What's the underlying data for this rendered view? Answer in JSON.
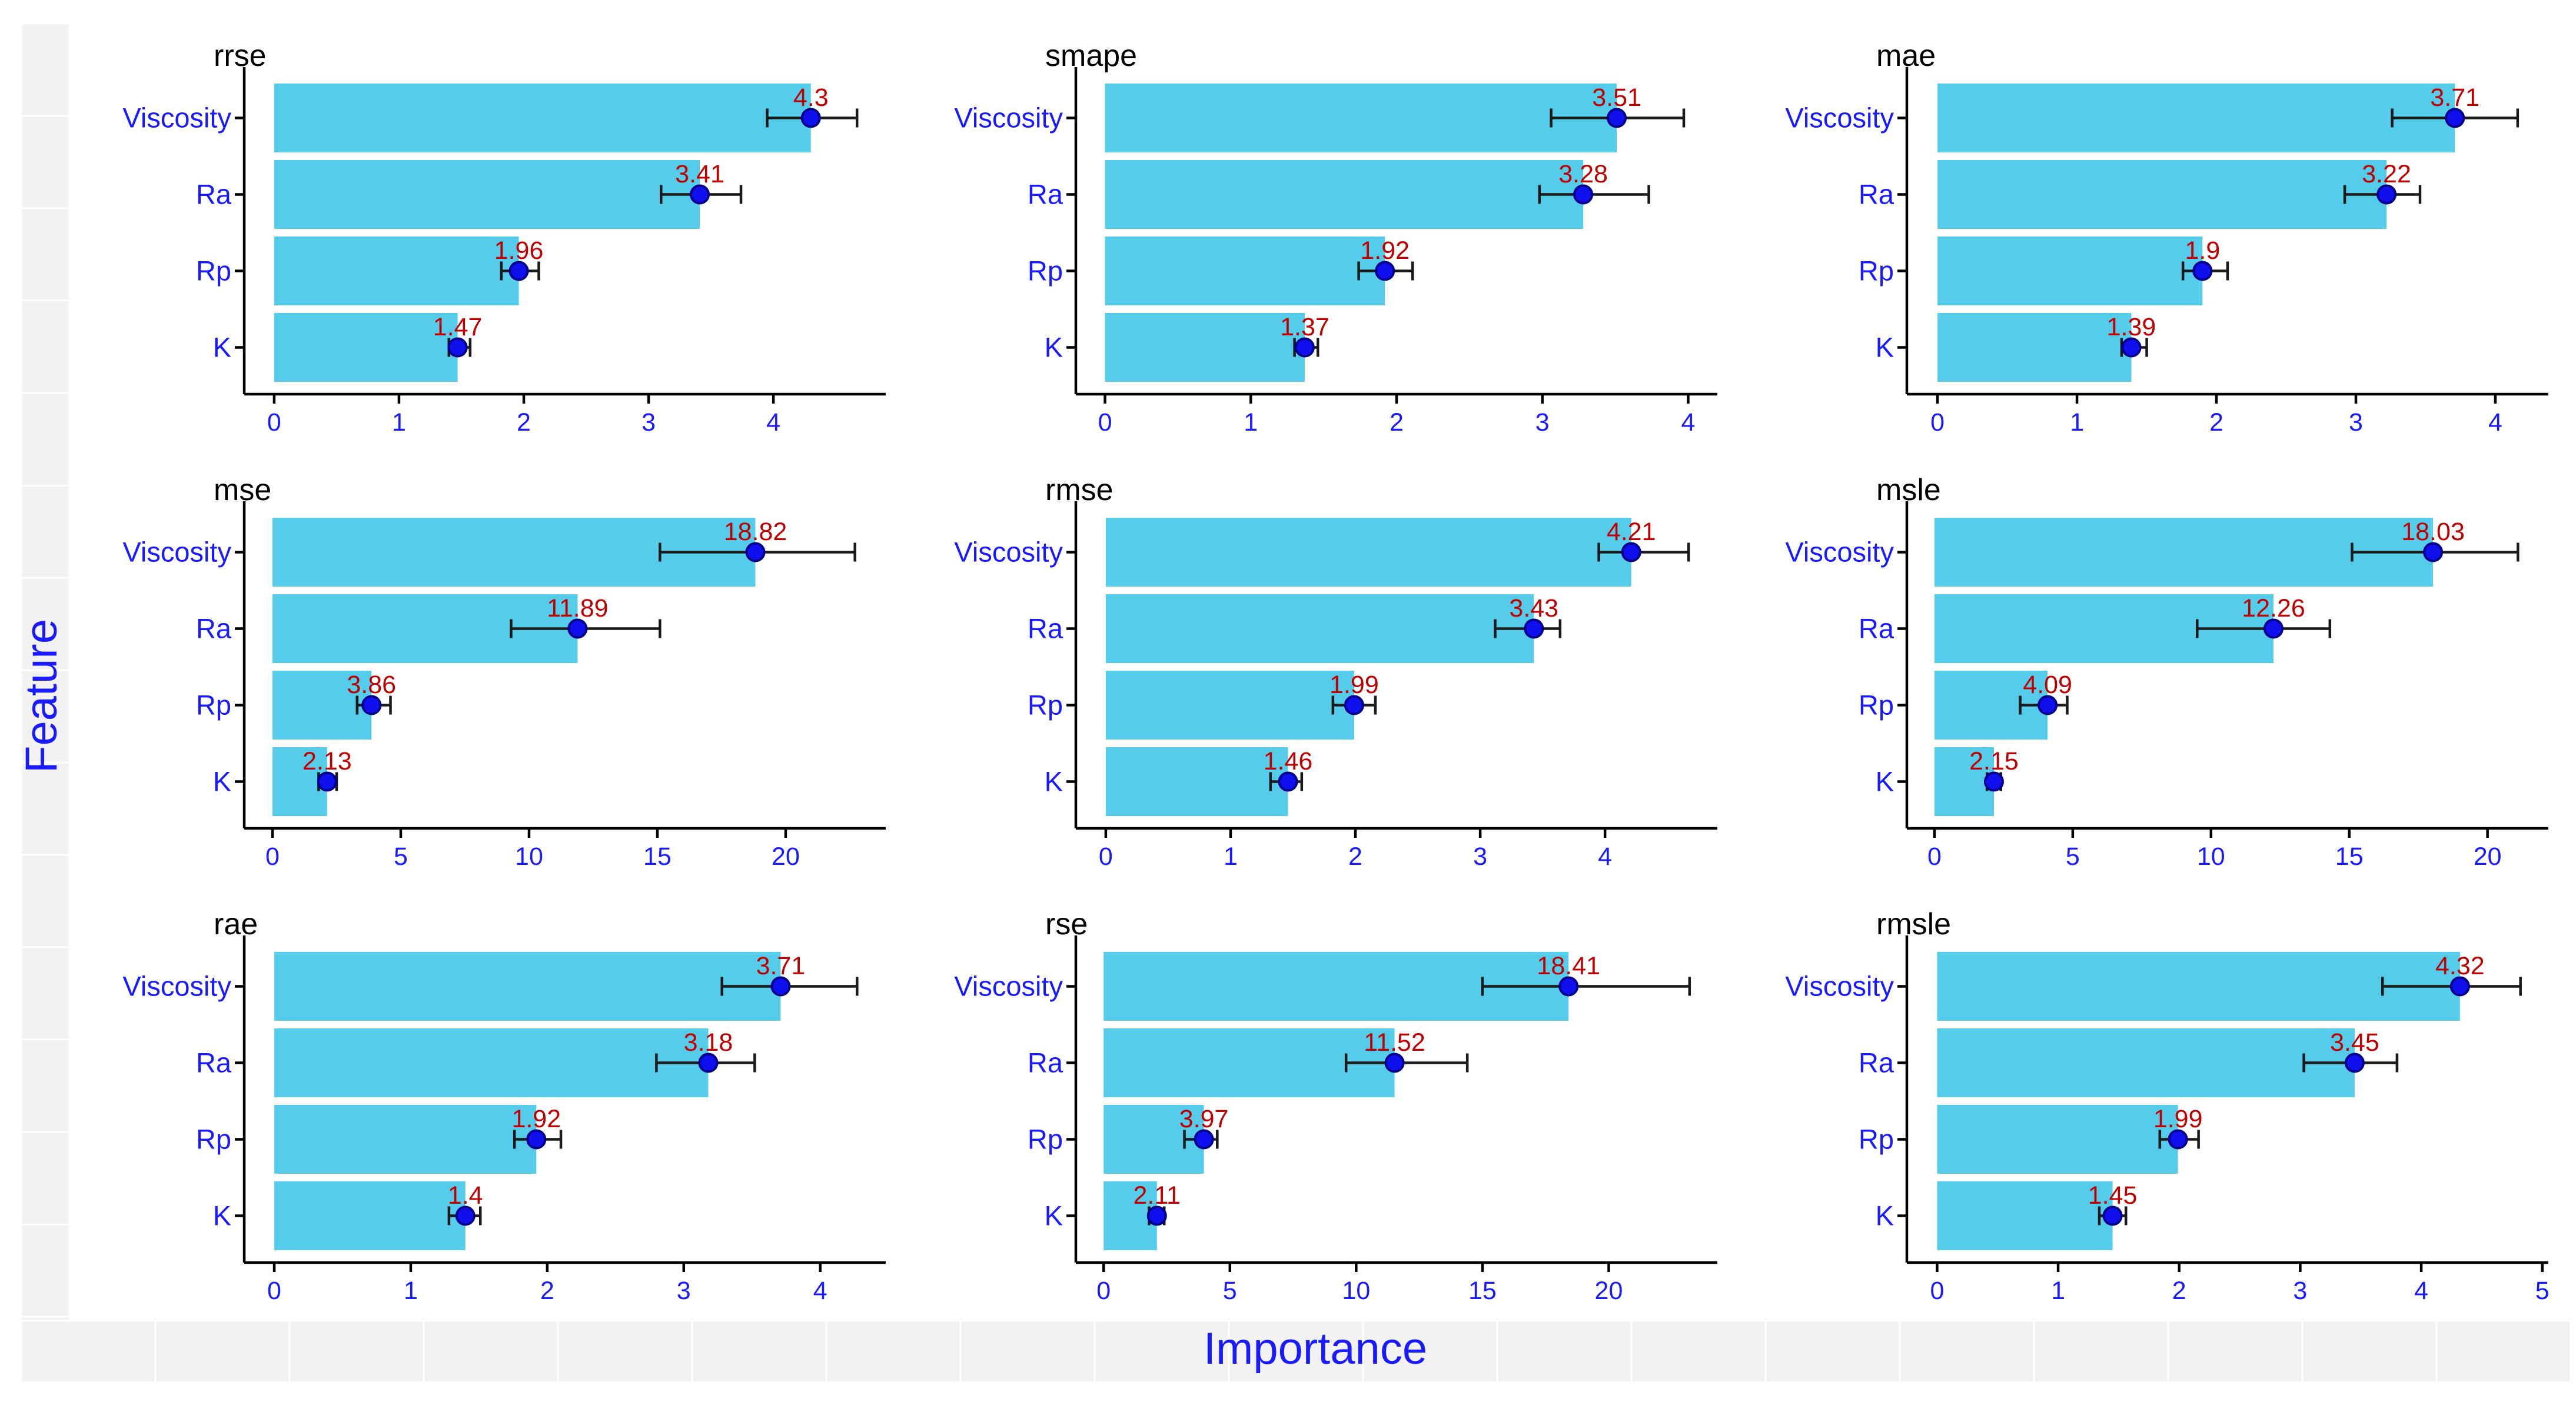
{
  "chart_data": {
    "type": "bar",
    "orientation": "horizontal",
    "xlabel": "Importance",
    "ylabel": "Feature",
    "colors": {
      "bar": "#55cdea",
      "point": "#1010ee",
      "label": "#c00000",
      "axis_text": "#1a1aff"
    },
    "panels": [
      {
        "title": "rrse",
        "categories": [
          "Viscosity",
          "Ra",
          "Rp",
          "K"
        ],
        "values": [
          4.3,
          3.41,
          1.96,
          1.47
        ],
        "value_labels": [
          "4.3",
          "3.41",
          "1.96",
          "1.47"
        ],
        "err_low": [
          3.95,
          3.1,
          1.82,
          1.4
        ],
        "err_high": [
          4.67,
          3.74,
          2.12,
          1.57
        ],
        "xlim": [
          -0.24,
          4.9
        ],
        "xticks": [
          0,
          1,
          2,
          3,
          4
        ]
      },
      {
        "title": "smape",
        "categories": [
          "Viscosity",
          "Ra",
          "Rp",
          "K"
        ],
        "values": [
          3.51,
          3.28,
          1.92,
          1.37
        ],
        "value_labels": [
          "3.51",
          "3.28",
          "1.92",
          "1.37"
        ],
        "err_low": [
          3.06,
          2.98,
          1.74,
          1.3
        ],
        "err_high": [
          3.97,
          3.73,
          2.11,
          1.46
        ],
        "xlim": [
          -0.2,
          4.2
        ],
        "xticks": [
          0,
          1,
          2,
          3,
          4
        ]
      },
      {
        "title": "mae",
        "categories": [
          "Viscosity",
          "Ra",
          "Rp",
          "K"
        ],
        "values": [
          3.71,
          3.22,
          1.9,
          1.39
        ],
        "value_labels": [
          "3.71",
          "3.22",
          "1.9",
          "1.39"
        ],
        "err_low": [
          3.26,
          2.92,
          1.76,
          1.32
        ],
        "err_high": [
          4.16,
          3.46,
          2.08,
          1.5
        ],
        "xlim": [
          -0.22,
          4.38
        ],
        "xticks": [
          0,
          1,
          2,
          3,
          4
        ]
      },
      {
        "title": "mse",
        "categories": [
          "Viscosity",
          "Ra",
          "Rp",
          "K"
        ],
        "values": [
          18.82,
          11.89,
          3.86,
          2.13
        ],
        "value_labels": [
          "18.82",
          "11.89",
          "3.86",
          "2.13"
        ],
        "err_low": [
          15.1,
          9.3,
          3.3,
          1.8
        ],
        "err_high": [
          22.7,
          15.1,
          4.6,
          2.5
        ],
        "xlim": [
          -1.1,
          23.9
        ],
        "xticks": [
          0,
          5,
          10,
          15,
          20
        ]
      },
      {
        "title": "rmse",
        "categories": [
          "Viscosity",
          "Ra",
          "Rp",
          "K"
        ],
        "values": [
          4.21,
          3.43,
          1.99,
          1.46
        ],
        "value_labels": [
          "4.21",
          "3.43",
          "1.99",
          "1.46"
        ],
        "err_low": [
          3.95,
          3.12,
          1.82,
          1.32
        ],
        "err_high": [
          4.67,
          3.64,
          2.16,
          1.57
        ],
        "xlim": [
          -0.24,
          4.9
        ],
        "xticks": [
          0,
          1,
          2,
          3,
          4
        ]
      },
      {
        "title": "msle",
        "categories": [
          "Viscosity",
          "Ra",
          "Rp",
          "K"
        ],
        "values": [
          18.03,
          12.26,
          4.09,
          2.15
        ],
        "value_labels": [
          "18.03",
          "12.26",
          "4.09",
          "2.15"
        ],
        "err_low": [
          15.1,
          9.5,
          3.1,
          1.9
        ],
        "err_high": [
          21.1,
          14.3,
          4.8,
          2.4
        ],
        "xlim": [
          -1.0,
          22.2
        ],
        "xticks": [
          0,
          5,
          10,
          15,
          20
        ]
      },
      {
        "title": "rae",
        "categories": [
          "Viscosity",
          "Ra",
          "Rp",
          "K"
        ],
        "values": [
          3.71,
          3.18,
          1.92,
          1.4
        ],
        "value_labels": [
          "3.71",
          "3.18",
          "1.92",
          "1.4"
        ],
        "err_low": [
          3.28,
          2.8,
          1.76,
          1.28
        ],
        "err_high": [
          4.27,
          3.52,
          2.1,
          1.51
        ],
        "xlim": [
          -0.22,
          4.48
        ],
        "xticks": [
          0,
          1,
          2,
          3,
          4
        ]
      },
      {
        "title": "rse",
        "categories": [
          "Viscosity",
          "Ra",
          "Rp",
          "K"
        ],
        "values": [
          18.41,
          11.52,
          3.97,
          2.11
        ],
        "value_labels": [
          "18.41",
          "11.52",
          "3.97",
          "2.11"
        ],
        "err_low": [
          15.0,
          9.6,
          3.2,
          1.8
        ],
        "err_high": [
          23.2,
          14.4,
          4.5,
          2.4
        ],
        "xlim": [
          -1.1,
          24.3
        ],
        "xticks": [
          0,
          5,
          10,
          15,
          20
        ]
      },
      {
        "title": "rmsle",
        "categories": [
          "Viscosity",
          "Ra",
          "Rp",
          "K"
        ],
        "values": [
          4.32,
          3.45,
          1.99,
          1.45
        ],
        "value_labels": [
          "4.32",
          "3.45",
          "1.99",
          "1.45"
        ],
        "err_low": [
          3.68,
          3.03,
          1.84,
          1.34
        ],
        "err_high": [
          4.82,
          3.8,
          2.16,
          1.56
        ],
        "xlim": [
          -0.25,
          5.05
        ],
        "xticks": [
          0,
          1,
          2,
          3,
          4,
          5
        ]
      }
    ]
  }
}
